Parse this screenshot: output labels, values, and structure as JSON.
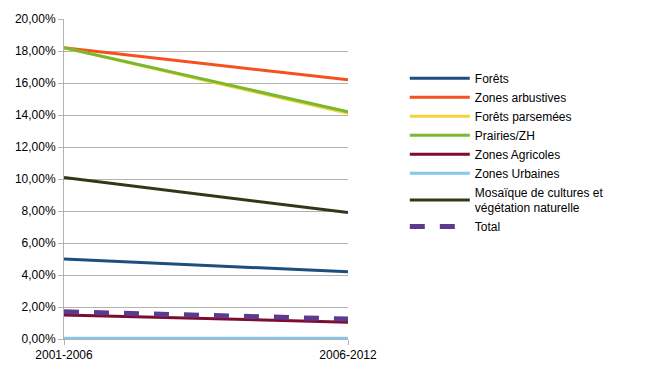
{
  "chart_data": {
    "type": "line",
    "categories": [
      "2001-2006",
      "2006-2012"
    ],
    "series": [
      {
        "name": "Forêts",
        "color": "#1b4f7c",
        "values": [
          5.0,
          4.2
        ]
      },
      {
        "name": "Zones arbustives",
        "color": "#f4511e",
        "values": [
          18.2,
          16.2
        ]
      },
      {
        "name": "Forêts parsemées",
        "color": "#f7d23b",
        "values": [
          18.2,
          14.1
        ]
      },
      {
        "name": "Prairies/ZH",
        "color": "#7ab82e",
        "values": [
          18.2,
          14.2
        ]
      },
      {
        "name": "Zones Agricoles",
        "color": "#7d0c2e",
        "values": [
          1.5,
          1.05
        ]
      },
      {
        "name": "Zones Urbaines",
        "color": "#82c8ec",
        "values": [
          0.05,
          0.05
        ]
      },
      {
        "name": "Mosaïque de cultures et végétation naturelle",
        "color": "#2e3a17",
        "values": [
          10.1,
          7.9
        ]
      },
      {
        "name": "Total",
        "color": "#5e3a8e",
        "line_style": "dashed",
        "values": [
          1.7,
          1.25
        ]
      }
    ],
    "ylim": [
      0,
      20
    ],
    "yticks": [
      {
        "value": 0,
        "label": "0,00%"
      },
      {
        "value": 2,
        "label": "2,00%"
      },
      {
        "value": 4,
        "label": "4,00%"
      },
      {
        "value": 6,
        "label": "6,00%"
      },
      {
        "value": 8,
        "label": "8,00%"
      },
      {
        "value": 10,
        "label": "10,00%"
      },
      {
        "value": 12,
        "label": "12,00%"
      },
      {
        "value": 14,
        "label": "14,00%"
      },
      {
        "value": 16,
        "label": "16,00%"
      },
      {
        "value": 18,
        "label": "18,00%"
      },
      {
        "value": 20,
        "label": "20,00%"
      }
    ],
    "grid": true,
    "legend": "right"
  }
}
